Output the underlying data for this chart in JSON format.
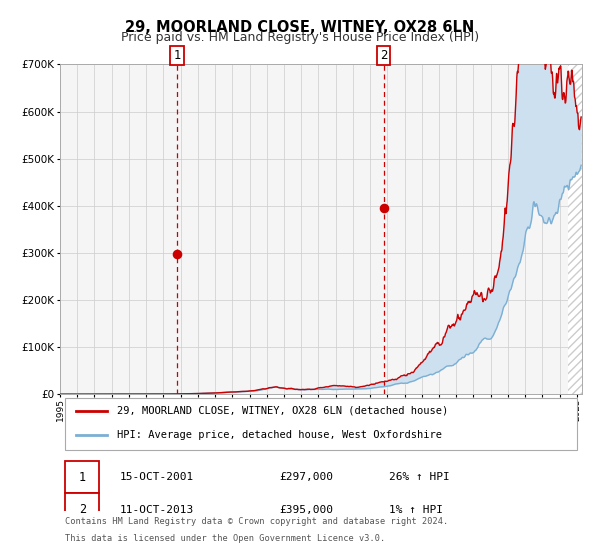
{
  "title": "29, MOORLAND CLOSE, WITNEY, OX28 6LN",
  "subtitle": "Price paid vs. HM Land Registry's House Price Index (HPI)",
  "xlim": [
    1995.0,
    2025.3
  ],
  "ylim": [
    0,
    700000
  ],
  "yticks": [
    0,
    100000,
    200000,
    300000,
    400000,
    500000,
    600000,
    700000
  ],
  "xticks": [
    1995,
    1996,
    1997,
    1998,
    1999,
    2000,
    2001,
    2002,
    2003,
    2004,
    2005,
    2006,
    2007,
    2008,
    2009,
    2010,
    2011,
    2012,
    2013,
    2014,
    2015,
    2016,
    2017,
    2018,
    2019,
    2020,
    2021,
    2022,
    2023,
    2024,
    2025
  ],
  "transaction1_x": 2001.79,
  "transaction1_y": 297000,
  "transaction1_date": "15-OCT-2001",
  "transaction1_price": "£297,000",
  "transaction1_hpi": "26% ↑ HPI",
  "transaction2_x": 2013.78,
  "transaction2_y": 395000,
  "transaction2_date": "11-OCT-2013",
  "transaction2_price": "£395,000",
  "transaction2_hpi": "1% ↑ HPI",
  "line1_color": "#cc0000",
  "line2_color": "#7bafd4",
  "fill_color": "#cce0f0",
  "grid_color": "#cccccc",
  "bg_color": "#f5f5f5",
  "hatch_color": "#cccccc",
  "legend1_label": "29, MOORLAND CLOSE, WITNEY, OX28 6LN (detached house)",
  "legend2_label": "HPI: Average price, detached house, West Oxfordshire",
  "footer_line1": "Contains HM Land Registry data © Crown copyright and database right 2024.",
  "footer_line2": "This data is licensed under the Open Government Licence v3.0.",
  "title_fontsize": 10.5,
  "subtitle_fontsize": 9
}
